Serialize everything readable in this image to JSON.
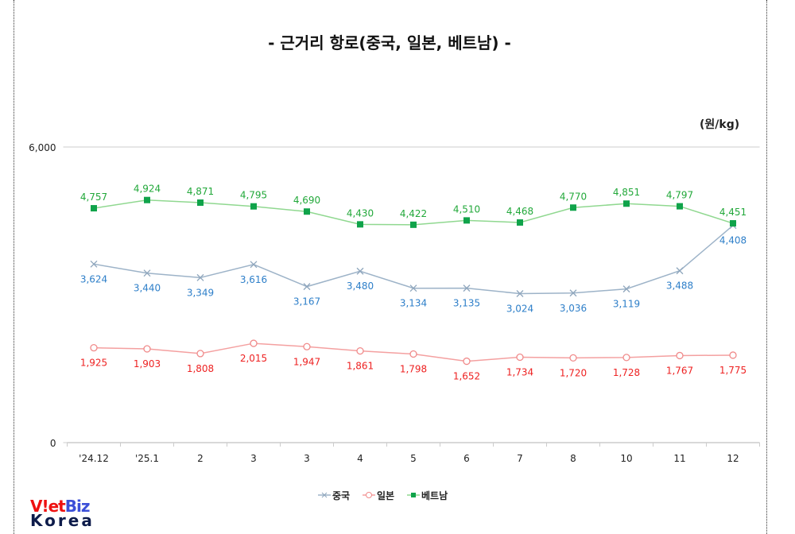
{
  "chart_data": {
    "type": "line",
    "title": "- 근거리 항로(중국, 일본, 베트남) -",
    "unit_label": "(원/kg)",
    "categories": [
      "'24.12",
      "'25.1",
      "2",
      "3",
      "3",
      "4",
      "5",
      "6",
      "7",
      "8",
      "10",
      "11",
      "12"
    ],
    "ylim": [
      0,
      6000
    ],
    "yticks": [
      "0",
      "6,000"
    ],
    "grid": false,
    "legend_position": "bottom",
    "series": [
      {
        "name": "중국",
        "color": "#9db3c8",
        "label_color": "#2e7fc9",
        "marker": "x",
        "values": [
          3624,
          3440,
          3349,
          3616,
          3167,
          3480,
          3134,
          3135,
          3024,
          3036,
          3119,
          3488,
          4408
        ],
        "labels": [
          "3,624",
          "3,440",
          "3,349",
          "3,616",
          "3,167",
          "3,480",
          "3,134",
          "3,135",
          "3,024",
          "3,036",
          "3,119",
          "3,488",
          "4,408"
        ]
      },
      {
        "name": "일본",
        "color": "#f4a0a0",
        "label_color": "#ee2222",
        "marker": "circle",
        "values": [
          1925,
          1903,
          1808,
          2015,
          1947,
          1861,
          1798,
          1652,
          1734,
          1720,
          1728,
          1767,
          1775
        ],
        "labels": [
          "1,925",
          "1,903",
          "1,808",
          "2,015",
          "1,947",
          "1,861",
          "1,798",
          "1,652",
          "1,734",
          "1,720",
          "1,728",
          "1,767",
          "1,775"
        ]
      },
      {
        "name": "베트남",
        "color": "#90d890",
        "label_color": "#22a83a",
        "marker": "square",
        "marker_color": "#0fa34a",
        "values": [
          4757,
          4924,
          4871,
          4795,
          4690,
          4430,
          4422,
          4510,
          4468,
          4770,
          4851,
          4797,
          4451
        ],
        "labels": [
          "4,757",
          "4,924",
          "4,871",
          "4,795",
          "4,690",
          "4,430",
          "4,422",
          "4,510",
          "4,468",
          "4,770",
          "4,851",
          "4,797",
          "4,451"
        ]
      }
    ]
  },
  "logo": {
    "line1_a": "V",
    "line1_b": "!et",
    "line1_c": "Biz",
    "line2": "Korea"
  }
}
